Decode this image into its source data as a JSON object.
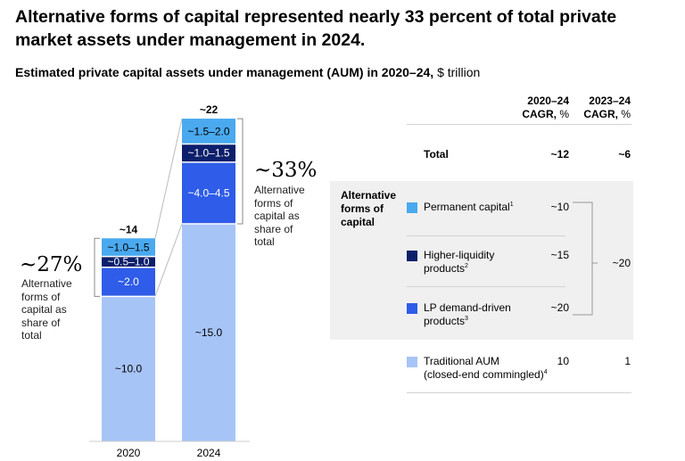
{
  "title": "Alternative forms of capital represented nearly 33 percent of total private market assets under management in 2024.",
  "subtitle": "Estimated private capital assets under management (AUM) in 2020–24,",
  "subtitle_unit": "$ trillion",
  "chart_data": {
    "type": "bar",
    "stacked": true,
    "categories": [
      "2020",
      "2024"
    ],
    "totals": [
      "~14",
      "~22"
    ],
    "series": [
      {
        "name": "Traditional AUM (closed-end commingled)",
        "values": [
          10.0,
          15.0
        ],
        "labels": [
          "~10.0",
          "~15.0"
        ],
        "color": "#a7c4f7"
      },
      {
        "name": "LP demand-driven products",
        "values": [
          2.0,
          4.25
        ],
        "labels": [
          "~2.0",
          "~4.0–4.5"
        ],
        "color": "#2f5ce8"
      },
      {
        "name": "Higher-liquidity products",
        "values": [
          0.75,
          1.25
        ],
        "labels": [
          "~0.5–1.0",
          "~1.0–1.5"
        ],
        "color": "#0c1f6b"
      },
      {
        "name": "Permanent capital",
        "values": [
          1.25,
          1.75
        ],
        "labels": [
          "~1.0–1.5",
          "~1.5–2.0"
        ],
        "color": "#4aa9ef"
      }
    ],
    "ylim": [
      0,
      22.5
    ],
    "share_annotations": [
      {
        "value": "~27%",
        "text": [
          "Alternative",
          "forms of",
          "capital as",
          "share of",
          "total"
        ]
      },
      {
        "value": "~33%",
        "text": [
          "Alternative",
          "forms of",
          "capital as",
          "share of",
          "total"
        ]
      }
    ]
  },
  "table": {
    "headers": [
      {
        "line1": "2020–24",
        "line2": "CAGR,",
        "pct": "%"
      },
      {
        "line1": "2023–24",
        "line2": "CAGR,",
        "pct": "%"
      }
    ],
    "total": {
      "label": "Total",
      "cagr_2020_24": "~12",
      "cagr_2023_24": "~6"
    },
    "group_label": [
      "Alternative",
      "forms of",
      "capital"
    ],
    "alt_rows": [
      {
        "label": "Permanent capital",
        "sup": "1",
        "cagr_2020_24": "~10",
        "color": "#4aa9ef"
      },
      {
        "label": "Higher-liquidity",
        "label2": "products",
        "sup": "2",
        "cagr_2020_24": "~15",
        "color": "#0c1f6b"
      },
      {
        "label": "LP demand-driven",
        "label2": "products",
        "sup": "3",
        "cagr_2020_24": "~20",
        "color": "#2f5ce8"
      }
    ],
    "alt_cagr_2023_24": "~20",
    "traditional": {
      "label": "Traditional AUM",
      "label2": "(closed-end commingled)",
      "sup": "4",
      "cagr_2020_24": "10",
      "cagr_2023_24": "1",
      "color": "#a7c4f7"
    }
  }
}
